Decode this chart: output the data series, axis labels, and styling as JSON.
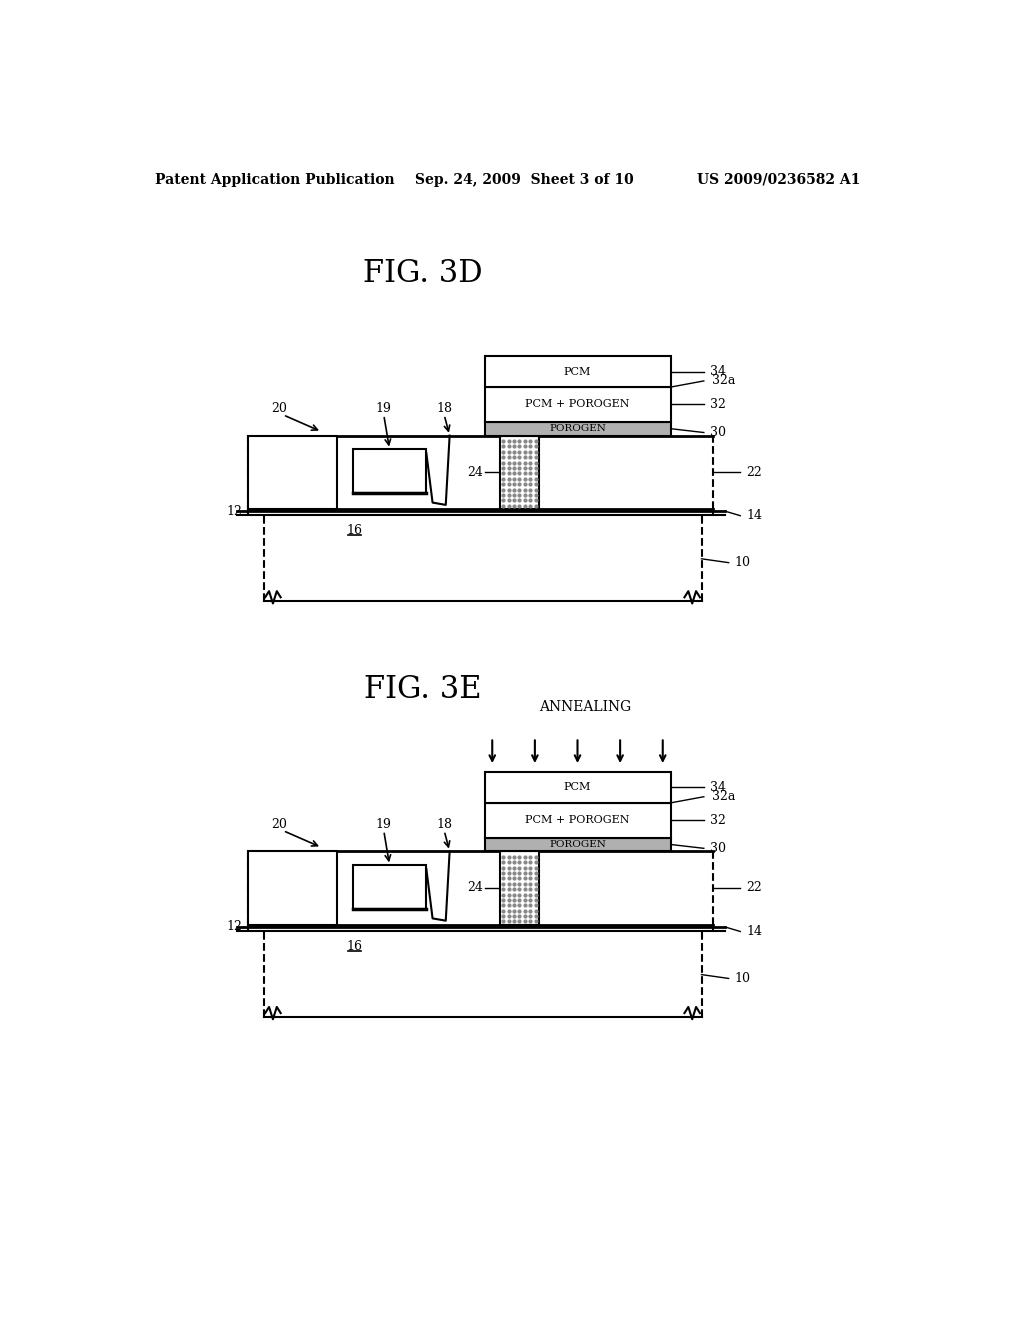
{
  "bg_color": "#ffffff",
  "header_text": "Patent Application Publication",
  "header_date": "Sep. 24, 2009  Sheet 3 of 10",
  "header_patent": "US 2009/0236582 A1",
  "fig3d_title": "FIG. 3D",
  "fig3e_title": "FIG. 3E",
  "line_color": "#000000"
}
